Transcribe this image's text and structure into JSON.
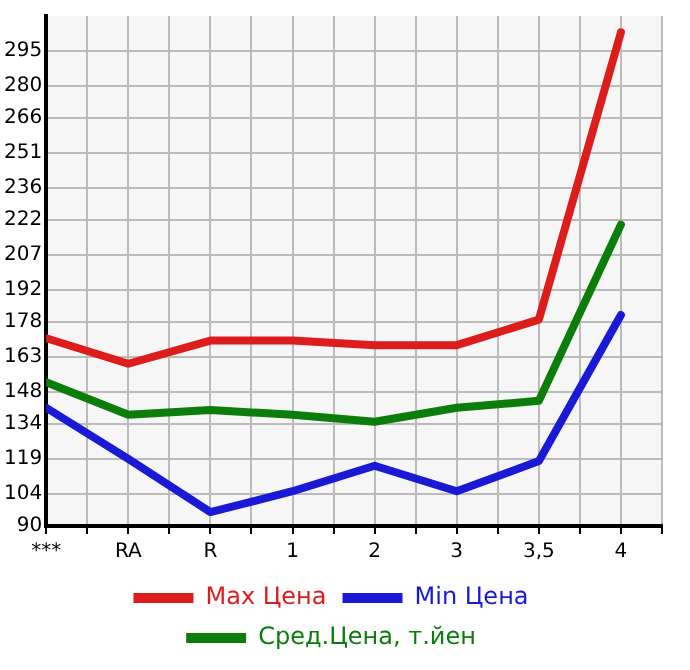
{
  "chart_data": {
    "type": "line",
    "categories": [
      "***",
      "RA",
      "R",
      "1",
      "2",
      "3",
      "3,5",
      "4"
    ],
    "series": [
      {
        "name": "Max Цена",
        "color": "#dd1c1c",
        "values": [
          171,
          160,
          170,
          170,
          168,
          168,
          179,
          303
        ]
      },
      {
        "name": "Min Цена",
        "color": "#1a1ad6",
        "values": [
          141,
          119,
          96,
          105,
          116,
          105,
          118,
          181
        ]
      },
      {
        "name": "Сред.Цена, т.йен",
        "color": "#0a7d0a",
        "values": [
          152,
          138,
          140,
          138,
          135,
          141,
          144,
          220
        ]
      }
    ],
    "ylim": [
      90,
      310
    ],
    "yticks": [
      90,
      104,
      119,
      134,
      148,
      163,
      178,
      192,
      207,
      222,
      236,
      251,
      266,
      280,
      295
    ],
    "grid": true,
    "legend": "bottom",
    "marker": "none",
    "line_style": "solid"
  }
}
